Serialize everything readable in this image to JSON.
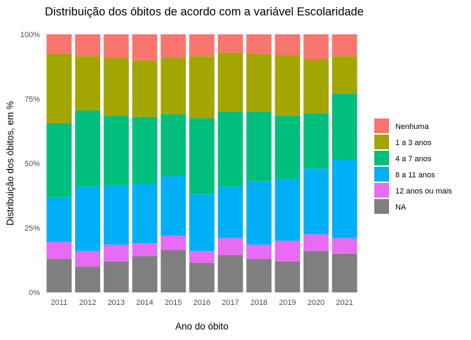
{
  "chart_data": {
    "type": "bar",
    "stacked": "percent",
    "title": "Distribuição dos óbitos de acordo com a variável Escolaridade",
    "xlabel": "Ano do óbito",
    "ylabel": "Distribuição dos óbitos, em %",
    "ylim": [
      0,
      100
    ],
    "y_ticks": [
      "0%",
      "25%",
      "50%",
      "75%",
      "100%"
    ],
    "y_tick_values": [
      0,
      25,
      50,
      75,
      100
    ],
    "grid": true,
    "legend_position": "right",
    "categories": [
      "2011",
      "2012",
      "2013",
      "2014",
      "2015",
      "2016",
      "2017",
      "2018",
      "2019",
      "2020",
      "2021"
    ],
    "series": [
      {
        "name": "NA",
        "color": "#7F7F7F",
        "values": [
          13,
          10,
          12,
          14,
          16.5,
          11.5,
          14.5,
          13,
          12,
          16,
          15
        ]
      },
      {
        "name": "12 anos ou mais",
        "color": "#E76BF3",
        "values": [
          6.5,
          6,
          6.5,
          5,
          5.5,
          4.5,
          6.5,
          5.5,
          8,
          6.5,
          6
        ]
      },
      {
        "name": "8 a 11 anos",
        "color": "#00B0F6",
        "values": [
          17.5,
          25,
          23,
          23,
          23,
          22,
          20,
          24.5,
          24,
          25.5,
          30.5
        ]
      },
      {
        "name": "4 a 7 anos",
        "color": "#00BF7D",
        "values": [
          28.5,
          29.5,
          27,
          26,
          24,
          29.5,
          29,
          27,
          24.5,
          21.5,
          25.5
        ]
      },
      {
        "name": "1 a 3 anos",
        "color": "#A3A500",
        "values": [
          27,
          21,
          22.5,
          22,
          22,
          24,
          23,
          22.5,
          23.5,
          21,
          14.5
        ]
      },
      {
        "name": "Nenhuma",
        "color": "#F8766D",
        "values": [
          7.5,
          8.5,
          9,
          10,
          9,
          8.5,
          7,
          7.5,
          8,
          9.5,
          8.5
        ]
      }
    ],
    "legend_order": [
      "Nenhuma",
      "1 a 3 anos",
      "4 a 7 anos",
      "8 a 11 anos",
      "12 anos ou mais",
      "NA"
    ]
  }
}
